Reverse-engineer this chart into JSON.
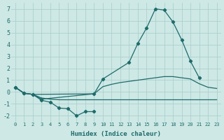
{
  "xlabel": "Humidex (Indice chaleur)",
  "background_color": "#cde8e5",
  "grid_color": "#a8ccc9",
  "line_color": "#1e6b6b",
  "ylim": [
    -2.5,
    7.5
  ],
  "xlim": [
    -0.5,
    23.5
  ],
  "yticks": [
    -2,
    -1,
    0,
    1,
    2,
    3,
    4,
    5,
    6,
    7
  ],
  "xticks": [
    0,
    1,
    2,
    3,
    4,
    5,
    6,
    7,
    8,
    9,
    10,
    11,
    12,
    13,
    14,
    15,
    16,
    17,
    18,
    19,
    20,
    21,
    22,
    23
  ],
  "peak_x": [
    0,
    1,
    2,
    3,
    9,
    10,
    13,
    14,
    15,
    16,
    17,
    18,
    19,
    20,
    21
  ],
  "peak_y": [
    0.4,
    -0.1,
    -0.2,
    -0.6,
    -0.15,
    1.1,
    2.5,
    4.1,
    5.4,
    7.0,
    6.9,
    5.9,
    4.4,
    2.6,
    1.2
  ],
  "jagged_x": [
    0,
    1,
    2,
    3,
    4,
    5,
    6,
    7,
    8,
    9
  ],
  "jagged_y": [
    0.4,
    -0.1,
    -0.2,
    -0.7,
    -0.85,
    -1.35,
    -1.4,
    -2.0,
    -1.65,
    -1.65
  ],
  "curve3_x": [
    0,
    1,
    2,
    9,
    10,
    11,
    12,
    13,
    14,
    15,
    16,
    17,
    18,
    19,
    20,
    21,
    22,
    23
  ],
  "curve3_y": [
    0.4,
    -0.1,
    -0.2,
    -0.15,
    0.45,
    0.65,
    0.8,
    0.9,
    1.0,
    1.1,
    1.2,
    1.3,
    1.3,
    1.2,
    1.1,
    0.7,
    0.4,
    0.3
  ],
  "baseline_x": [
    0,
    1,
    2,
    3,
    4,
    5,
    6,
    7,
    8,
    9,
    10,
    11,
    12,
    13,
    14,
    15,
    16,
    17,
    18,
    19,
    20,
    21,
    22,
    23
  ],
  "baseline_y": [
    0.4,
    -0.1,
    -0.2,
    -0.5,
    -0.6,
    -0.65,
    -0.65,
    -0.65,
    -0.65,
    -0.65,
    -0.65,
    -0.65,
    -0.65,
    -0.65,
    -0.65,
    -0.65,
    -0.65,
    -0.65,
    -0.65,
    -0.65,
    -0.65,
    -0.65,
    -0.65,
    -0.65
  ]
}
